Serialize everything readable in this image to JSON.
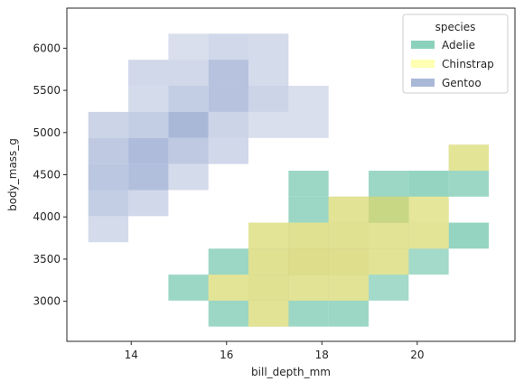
{
  "chart_data": {
    "type": "heatmap",
    "xlabel": "bill_depth_mm",
    "ylabel": "body_mass_g",
    "xlim": [
      12.65,
      22.05
    ],
    "ylim": [
      2525,
      6475
    ],
    "x_ticks": [
      14,
      16,
      18,
      20
    ],
    "y_ticks": [
      3000,
      3500,
      4000,
      4500,
      5000,
      5500,
      6000
    ],
    "bin_edges_x": [
      13.1,
      13.94,
      14.78,
      15.62,
      16.46,
      17.3,
      18.14,
      18.98,
      19.82,
      20.66,
      21.5
    ],
    "bin_edges_y": [
      2700,
      3036,
      3372,
      3708,
      4044,
      4380,
      4716,
      5052,
      5388,
      5724,
      6060,
      6396
    ],
    "legend": {
      "title": "species",
      "entries": [
        "Adelie",
        "Chinstrap",
        "Gentoo"
      ],
      "position": "upper right"
    },
    "series": [
      {
        "name": "Adelie",
        "color": "#66c2a5",
        "cells": [
          [
            3,
            0,
            0.55
          ],
          [
            4,
            4,
            0.55
          ],
          [
            5,
            1,
            0.5
          ],
          [
            5,
            5,
            0.55
          ],
          [
            6,
            0,
            0.6
          ],
          [
            7,
            3,
            0.5
          ],
          [
            8,
            2,
            0.45
          ],
          [
            8,
            5,
            0.6
          ],
          [
            9,
            3,
            0.5
          ],
          [
            9,
            4,
            0.55
          ],
          [
            10,
            0,
            0.6
          ],
          [
            10,
            1,
            0.55
          ],
          [
            10,
            2,
            0.65
          ],
          [
            10,
            3,
            0.45
          ]
        ]
      },
      {
        "name": "Chinstrap",
        "color": "#ffff99",
        "cells": [
          [
            1,
            2,
            0.35
          ],
          [
            1,
            3,
            0.5
          ],
          [
            1,
            4,
            0.6
          ],
          [
            1,
            5,
            0.7
          ],
          [
            2,
            4,
            0.75
          ],
          [
            2,
            6,
            0.45
          ],
          [
            2,
            7,
            0.5
          ],
          [
            2,
            8,
            0.55
          ],
          [
            2,
            9,
            0.35
          ],
          [
            3,
            3,
            0.6
          ],
          [
            3,
            4,
            0.85
          ],
          [
            3,
            5,
            0.9
          ],
          [
            3,
            6,
            0.9
          ],
          [
            3,
            7,
            0.7
          ],
          [
            4,
            2,
            0.75
          ],
          [
            4,
            3,
            0.8
          ],
          [
            4,
            4,
            0.95
          ],
          [
            4,
            5,
            1.0
          ],
          [
            4,
            6,
            0.8
          ],
          [
            5,
            6,
            0.7
          ],
          [
            5,
            7,
            0.65
          ],
          [
            6,
            4,
            0.75
          ],
          [
            6,
            9,
            0.45
          ],
          [
            6,
            8,
            0.55
          ],
          [
            7,
            9,
            0.55
          ],
          [
            8,
            7,
            0.55
          ],
          [
            9,
            8,
            0.45
          ]
        ]
      },
      {
        "name": "Gentoo",
        "color": "#8da0cb",
        "cells": [
          [
            3,
            0,
            0.35
          ],
          [
            4,
            0,
            0.45
          ],
          [
            5,
            0,
            0.5
          ],
          [
            6,
            0,
            0.4
          ],
          [
            7,
            0,
            0.35
          ],
          [
            8,
            1,
            0.35
          ],
          [
            8,
            2,
            0.45
          ],
          [
            8,
            3,
            0.65
          ],
          [
            8,
            4,
            0.45
          ],
          [
            9,
            1,
            0.45
          ],
          [
            9,
            2,
            0.6
          ],
          [
            9,
            3,
            0.75
          ],
          [
            9,
            4,
            0.7
          ],
          [
            9,
            5,
            0.35
          ],
          [
            10,
            3,
            0.55
          ],
          [
            10,
            5,
            0.4
          ],
          [
            10,
            6,
            0.55
          ],
          [
            11,
            2,
            0.45
          ],
          [
            11,
            3,
            0.5
          ],
          [
            11,
            4,
            0.75
          ],
          [
            11,
            5,
            0.45
          ],
          [
            11,
            6,
            0.4
          ]
        ]
      }
    ]
  }
}
